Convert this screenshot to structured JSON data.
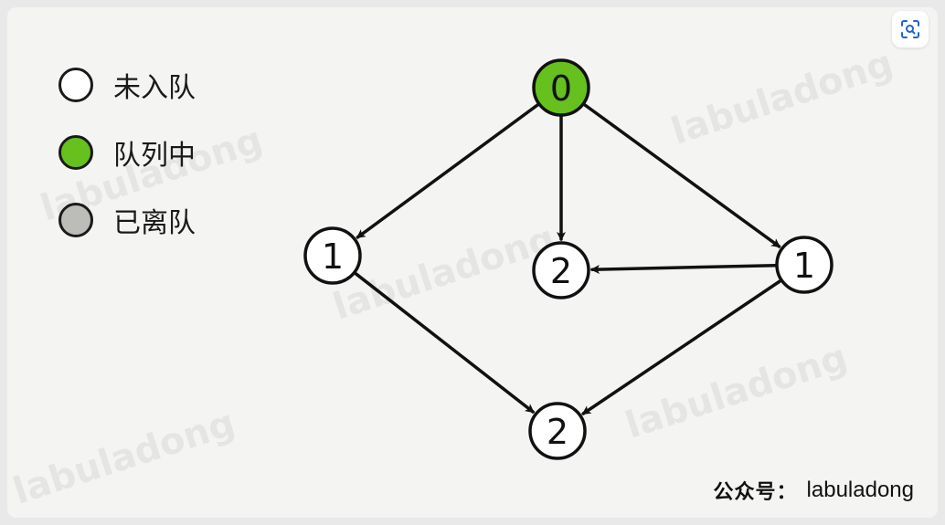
{
  "legend": {
    "unvisited": {
      "label": "未入队",
      "color": "#ffffff"
    },
    "in_queue": {
      "label": "队列中",
      "color": "#66c01e"
    },
    "dequeued": {
      "label": "已离队",
      "color": "#bcbcb8"
    }
  },
  "graph": {
    "nodes": [
      {
        "id": "n0",
        "label": "0",
        "state": "in_queue"
      },
      {
        "id": "n1a",
        "label": "1",
        "state": "unvisited"
      },
      {
        "id": "n2a",
        "label": "2",
        "state": "unvisited"
      },
      {
        "id": "n1b",
        "label": "1",
        "state": "unvisited"
      },
      {
        "id": "n2b",
        "label": "2",
        "state": "unvisited"
      }
    ],
    "edges": [
      {
        "from": "n0",
        "to": "n1a"
      },
      {
        "from": "n0",
        "to": "n2a"
      },
      {
        "from": "n0",
        "to": "n1b"
      },
      {
        "from": "n1b",
        "to": "n2a"
      },
      {
        "from": "n1a",
        "to": "n2b"
      },
      {
        "from": "n1b",
        "to": "n2b"
      }
    ]
  },
  "watermark": "labuladong",
  "footer": {
    "prefix": "公众号：",
    "name": "labuladong"
  },
  "toolbar": {
    "scan_icon": "scan-icon"
  }
}
